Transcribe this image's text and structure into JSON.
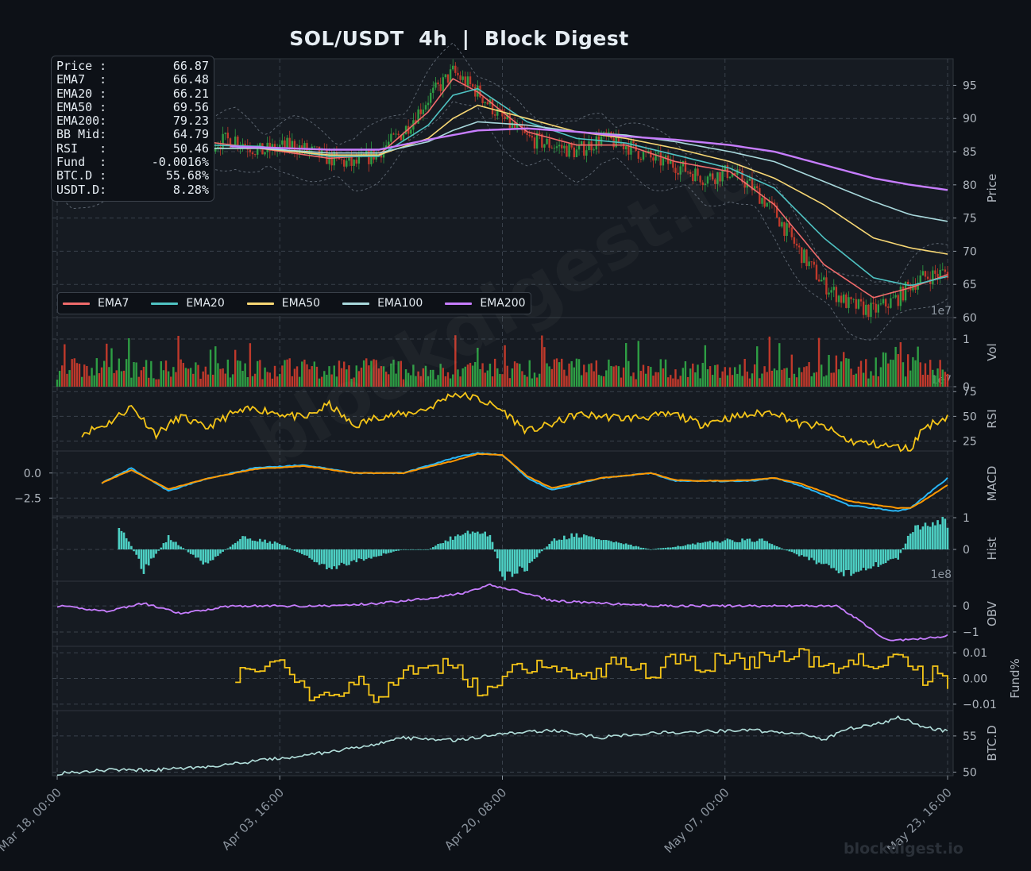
{
  "title": "SOL/USDT  4h  |  Block Digest",
  "watermark": "blockdigest.io",
  "info_box": [
    {
      "label": "Price :",
      "value": "66.87"
    },
    {
      "label": "EMA7  :",
      "value": "66.48"
    },
    {
      "label": "EMA20 :",
      "value": "66.21"
    },
    {
      "label": "EMA50 :",
      "value": "69.56"
    },
    {
      "label": "EMA200:",
      "value": "79.23"
    },
    {
      "label": "BB Mid:",
      "value": "64.79"
    },
    {
      "label": "RSI   :",
      "value": "50.46"
    },
    {
      "label": "Fund  :",
      "value": "-0.0016%"
    },
    {
      "label": "BTC.D :",
      "value": "55.68%"
    },
    {
      "label": "USDT.D:",
      "value": "8.28%"
    }
  ],
  "legend": [
    {
      "name": "EMA7",
      "color": "#f06b6b"
    },
    {
      "name": "EMA20",
      "color": "#4fc3c3"
    },
    {
      "name": "EMA50",
      "color": "#f7d774"
    },
    {
      "name": "EMA100",
      "color": "#a8d8dc"
    },
    {
      "name": "EMA200",
      "color": "#c77dff"
    }
  ],
  "colors": {
    "up": "#2e9e44",
    "down": "#c0392b",
    "rsi": "#f5c518",
    "macd": "#29b6f6",
    "signal": "#ff9800",
    "hist": "#4dd0c4",
    "obv": "#c77dff",
    "fund": "#f5c518",
    "btcd": "#b2dfdb"
  },
  "chart_data": {
    "type": "line",
    "x_ticks": [
      "Mar 18, 00:00",
      "Apr 03, 16:00",
      "Apr 20, 08:00",
      "May 07, 00:00",
      "May 23, 16:00"
    ],
    "panels": [
      {
        "ylabel": "Price",
        "yticks": [
          60,
          65,
          70,
          75,
          80,
          85,
          90,
          95
        ],
        "ylim": [
          60,
          99
        ],
        "offset_label": "1e7",
        "series": [
          {
            "name": "Price",
            "x": [
              0,
              5,
              10,
              20,
              30,
              40,
              50,
              60,
              72,
              82,
              95,
              110,
              120,
              130,
              140,
              150,
              160,
              170,
              180,
              190,
              200,
              210,
              220,
              230,
              240,
              250,
              262,
              272,
              280,
              290,
              300,
              310,
              320,
              330,
              340,
              345,
              350,
              355,
              360
            ],
            "values": [
              82,
              80,
              81,
              82,
              84,
              85,
              88,
              86,
              87,
              85,
              86,
              84,
              83,
              85,
              88,
              93,
              97,
              94,
              90,
              87,
              86,
              85,
              87,
              86,
              84,
              83,
              81,
              82,
              80,
              76,
              70,
              65,
              62,
              61,
              63,
              65,
              66,
              66.5,
              66.87
            ]
          },
          {
            "name": "EMA7",
            "x": [
              0,
              20,
              40,
              60,
              82,
              110,
              130,
              150,
              160,
              170,
              190,
              210,
              230,
              250,
              272,
              290,
              310,
              330,
              345,
              360
            ],
            "values": [
              82,
              82,
              84.5,
              86.5,
              85.5,
              84,
              84.5,
              91,
              96,
              94,
              88,
              86,
              86,
              83.5,
              82,
              77,
              68,
              63,
              64.5,
              66.48
            ]
          },
          {
            "name": "EMA20",
            "x": [
              0,
              20,
              40,
              60,
              82,
              110,
              130,
              150,
              160,
              170,
              190,
              210,
              230,
              250,
              272,
              290,
              310,
              330,
              345,
              360
            ],
            "values": [
              82,
              82,
              84,
              86,
              85.8,
              84.3,
              84.3,
              89,
              93.5,
              94.5,
              89.5,
              87,
              86.3,
              84.5,
              82.5,
              79.5,
              72,
              66,
              64.8,
              66.21
            ]
          },
          {
            "name": "EMA50",
            "x": [
              0,
              20,
              40,
              60,
              82,
              110,
              130,
              150,
              160,
              170,
              190,
              210,
              230,
              250,
              272,
              290,
              310,
              330,
              345,
              360
            ],
            "values": [
              84,
              82.5,
              83.5,
              85.5,
              85.5,
              84.5,
              84.5,
              87,
              90,
              92,
              90,
              88,
              87,
              85.5,
              83.5,
              81,
              77,
              72,
              70.5,
              69.56
            ]
          },
          {
            "name": "EMA100",
            "x": [
              0,
              20,
              40,
              60,
              82,
              110,
              130,
              150,
              160,
              170,
              190,
              210,
              230,
              250,
              272,
              290,
              310,
              330,
              345,
              360
            ],
            "values": [
              85,
              84,
              84.5,
              85.5,
              85.5,
              84.8,
              84.8,
              86.5,
              88.2,
              89.5,
              89,
              88,
              87.5,
              86.5,
              85,
              83.5,
              80.5,
              77.5,
              75.5,
              74.5
            ]
          },
          {
            "name": "EMA200",
            "x": [
              70,
              110,
              130,
              150,
              170,
              190,
              210,
              230,
              250,
              272,
              290,
              310,
              330,
              345,
              360
            ],
            "values": [
              85.8,
              85.3,
              85.3,
              86.8,
              88.2,
              88.5,
              88,
              87.3,
              86.8,
              86,
              85,
              83,
              81,
              80,
              79.23
            ]
          }
        ]
      },
      {
        "ylabel": "Vol",
        "yticks": [
          0,
          1
        ],
        "offset_label": "1e7",
        "values_description": "per-bar volume 0.2–1.0"
      },
      {
        "ylabel": "RSI",
        "yticks": [
          25,
          50,
          75
        ],
        "ylim": [
          15,
          80
        ],
        "series": [
          {
            "name": "RSI",
            "x": [
              10,
              20,
              30,
              40,
              50,
              60,
              70,
              80,
              100,
              110,
              120,
              130,
              140,
              150,
              160,
              170,
              180,
              190,
              200,
              210,
              230,
              250,
              260,
              270,
              290,
              300,
              310,
              320,
              330,
              345,
              350,
              360
            ],
            "values": [
              33,
              42,
              60,
              32,
              50,
              38,
              52,
              58,
              48,
              62,
              40,
              50,
              52,
              58,
              73,
              68,
              56,
              35,
              42,
              52,
              48,
              52,
              42,
              48,
              55,
              42,
              40,
              25,
              22,
              17,
              38,
              50
            ]
          }
        ]
      },
      {
        "ylabel": "MACD",
        "yticks": [
          -2.5,
          0.0
        ],
        "series": [
          {
            "name": "MACD",
            "x": [
              18,
              30,
              45,
              60,
              80,
              100,
              120,
              140,
              160,
              170,
              180,
              190,
              200,
              220,
              240,
              250,
              260,
              280,
              290,
              300,
              320,
              340,
              345,
              350,
              360
            ],
            "values": [
              -1,
              0.5,
              -1.8,
              -0.6,
              0.5,
              0.8,
              0.0,
              0.0,
              1.5,
              2.0,
              1.8,
              -0.5,
              -1.7,
              -0.5,
              0.0,
              -0.8,
              -0.8,
              -0.8,
              -0.5,
              -1.2,
              -3.2,
              -3.8,
              -3.5,
              -2.5,
              -0.5
            ]
          },
          {
            "name": "Signal",
            "x": [
              18,
              30,
              45,
              60,
              80,
              100,
              120,
              140,
              160,
              170,
              180,
              190,
              200,
              220,
              240,
              250,
              260,
              280,
              290,
              300,
              320,
              340,
              345,
              350,
              360
            ],
            "values": [
              -1,
              0.3,
              -1.6,
              -0.6,
              0.4,
              0.7,
              0.0,
              0.0,
              1.2,
              1.9,
              1.8,
              -0.3,
              -1.5,
              -0.5,
              0.0,
              -0.7,
              -0.8,
              -0.7,
              -0.5,
              -1.0,
              -2.8,
              -3.5,
              -3.5,
              -2.8,
              -1.2
            ]
          }
        ]
      },
      {
        "ylabel": "Hist",
        "yticks": [
          0,
          1
        ],
        "offset_label": "1e8",
        "series": [
          {
            "name": "Hist",
            "x": [
              25,
              35,
              45,
              60,
              75,
              90,
              110,
              140,
              150,
              165,
              175,
              180,
              190,
              200,
              210,
              240,
              270,
              285,
              300,
              320,
              340,
              345,
              355,
              360
            ],
            "values": [
              0.9,
              -0.7,
              0.4,
              -0.5,
              0.4,
              0.2,
              -0.6,
              0.0,
              0.0,
              0.6,
              0.5,
              -0.9,
              -0.6,
              0.3,
              0.5,
              0.0,
              0.3,
              0.3,
              -0.2,
              -0.8,
              -0.3,
              0.6,
              1.0,
              0.9
            ]
          }
        ]
      },
      {
        "ylabel": "OBV",
        "yticks": [
          -1,
          0
        ],
        "series": [
          {
            "name": "OBV",
            "x": [
              0,
              20,
              35,
              50,
              70,
              90,
              110,
              130,
              150,
              165,
              175,
              185,
              200,
              220,
              245,
              260,
              280,
              295,
              305,
              315,
              325,
              335,
              345,
              355,
              360
            ],
            "values": [
              0.0,
              -0.2,
              0.1,
              -0.3,
              0.0,
              0.0,
              0.0,
              0.1,
              0.3,
              0.5,
              0.8,
              0.6,
              0.2,
              0.1,
              0.0,
              0.0,
              0.0,
              0.0,
              0.0,
              0.0,
              -0.6,
              -1.3,
              -1.3,
              -1.2,
              -1.15
            ]
          }
        ]
      },
      {
        "ylabel": "Fund%",
        "yticks": [
          -0.01,
          0.0,
          0.01
        ],
        "series": [
          {
            "name": "Funding",
            "x": [
              72,
              80,
              90,
              100,
              110,
              120,
              130,
              140,
              150,
              160,
              170,
              180,
              190,
              200,
              210,
              220,
              230,
              240,
              250,
              260,
              270,
              280,
              290,
              300,
              310,
              320,
              330,
              340,
              350,
              355,
              360
            ],
            "values": [
              0.002,
              0.005,
              0.006,
              -0.005,
              -0.006,
              0.0,
              -0.009,
              0.003,
              0.004,
              0.006,
              -0.005,
              0.002,
              0.005,
              0.006,
              0.0,
              0.004,
              0.006,
              0.002,
              0.007,
              0.005,
              0.008,
              0.006,
              0.009,
              0.009,
              0.004,
              0.008,
              0.006,
              0.008,
              0.0,
              0.004,
              -0.0016
            ]
          }
        ]
      },
      {
        "ylabel": "BTC.D",
        "yticks": [
          50,
          55
        ],
        "series": [
          {
            "name": "BTC.D",
            "x": [
              0,
              20,
              40,
              60,
              80,
              100,
              120,
              140,
              160,
              180,
              200,
              220,
              240,
              260,
              280,
              300,
              310,
              320,
              330,
              340,
              345,
              350,
              355,
              360
            ],
            "values": [
              49.8,
              50.3,
              50.3,
              50.7,
              51.5,
              52.3,
              53.3,
              54.7,
              54.4,
              55.3,
              55.8,
              54.8,
              55.4,
              55.6,
              55.8,
              55.3,
              54.5,
              56.0,
              56.5,
              57.5,
              57.0,
              56.3,
              55.9,
              55.68
            ]
          }
        ]
      }
    ],
    "grid": true
  }
}
